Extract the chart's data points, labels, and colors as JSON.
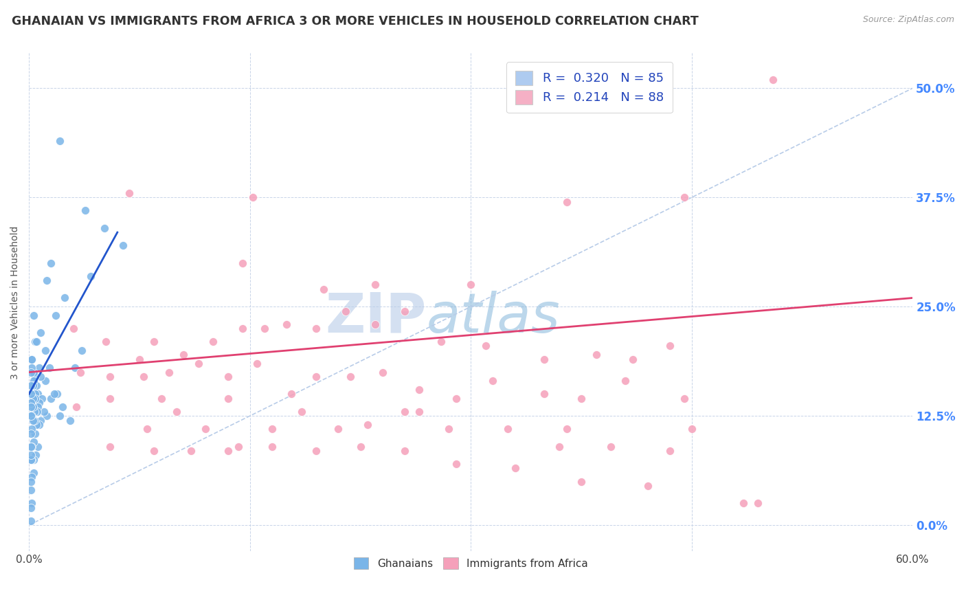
{
  "title": "GHANAIAN VS IMMIGRANTS FROM AFRICA 3 OR MORE VEHICLES IN HOUSEHOLD CORRELATION CHART",
  "source": "Source: ZipAtlas.com",
  "ylabel": "3 or more Vehicles in Household",
  "ytick_values": [
    0.0,
    12.5,
    25.0,
    37.5,
    50.0
  ],
  "xlim": [
    0.0,
    60.0
  ],
  "ylim": [
    -3.0,
    54.0
  ],
  "legend_entries": [
    {
      "label": "R =  0.320   N = 85",
      "color": "#aecbf0"
    },
    {
      "label": "R =  0.214   N = 88",
      "color": "#f5b0c5"
    }
  ],
  "blue_scatter_color": "#7ab5e8",
  "pink_scatter_color": "#f5a0ba",
  "blue_line_color": "#2255cc",
  "pink_line_color": "#e04070",
  "diagonal_color": "#b8cce8",
  "watermark_left": "ZIP",
  "watermark_right": "atlas",
  "background_color": "#ffffff",
  "title_color": "#333333",
  "title_fontsize": 12.5,
  "legend_fontsize": 13,
  "axis_label_fontsize": 10,
  "tick_label_color_y": "#4488ff",
  "grid_color": "#c8d4e8",
  "blue_points_x": [
    1.5,
    2.1,
    3.8,
    4.2,
    5.1,
    6.4,
    0.8,
    1.2,
    1.8,
    2.4,
    3.1,
    3.6,
    0.4,
    0.7,
    1.1,
    1.5,
    1.9,
    2.3,
    2.8,
    0.3,
    0.5,
    0.8,
    1.1,
    1.4,
    1.7,
    2.1,
    0.2,
    0.4,
    0.6,
    0.9,
    1.2,
    0.2,
    0.3,
    0.5,
    0.7,
    1.0,
    0.2,
    0.3,
    0.4,
    0.6,
    0.8,
    0.15,
    0.25,
    0.4,
    0.55,
    0.7,
    0.15,
    0.25,
    0.35,
    0.5,
    0.15,
    0.25,
    0.35,
    0.15,
    0.2,
    0.15,
    0.25,
    0.4,
    0.6,
    0.15,
    0.2,
    0.3,
    0.45,
    0.15,
    0.2,
    0.3,
    0.15,
    0.2,
    0.3,
    0.15,
    0.2,
    0.15,
    0.15,
    0.2,
    0.15,
    0.15,
    0.15
  ],
  "blue_points_y": [
    30.0,
    44.0,
    36.0,
    28.5,
    34.0,
    32.0,
    22.0,
    28.0,
    24.0,
    26.0,
    18.0,
    20.0,
    21.0,
    18.0,
    16.5,
    14.5,
    15.0,
    13.5,
    12.0,
    24.0,
    21.0,
    17.0,
    20.0,
    18.0,
    15.0,
    12.5,
    19.0,
    17.0,
    15.0,
    14.5,
    12.5,
    19.0,
    17.5,
    16.0,
    14.0,
    13.0,
    18.0,
    16.5,
    15.0,
    13.5,
    12.0,
    17.5,
    16.0,
    14.5,
    13.0,
    11.5,
    16.0,
    14.5,
    13.0,
    11.5,
    15.0,
    13.5,
    12.0,
    14.0,
    12.5,
    13.5,
    12.0,
    10.5,
    9.0,
    12.5,
    11.0,
    9.5,
    8.0,
    10.5,
    9.0,
    7.5,
    9.0,
    7.5,
    6.0,
    7.5,
    5.5,
    5.0,
    4.0,
    2.5,
    2.0,
    0.5,
    8.0
  ],
  "pink_points_x": [
    6.8,
    14.5,
    15.2,
    20.0,
    23.5,
    30.0,
    36.5,
    50.5,
    3.0,
    5.2,
    7.5,
    8.5,
    10.5,
    12.5,
    14.5,
    16.0,
    17.5,
    19.5,
    21.5,
    23.5,
    25.5,
    28.0,
    31.0,
    35.0,
    38.5,
    41.0,
    43.5,
    3.5,
    5.5,
    7.8,
    9.5,
    11.5,
    13.5,
    15.5,
    17.8,
    19.5,
    21.8,
    24.0,
    26.5,
    29.0,
    31.5,
    35.0,
    37.5,
    40.5,
    44.5,
    3.2,
    5.5,
    8.0,
    10.0,
    12.0,
    14.2,
    16.5,
    18.5,
    21.0,
    23.0,
    25.5,
    28.5,
    32.5,
    36.0,
    39.5,
    43.5,
    5.5,
    8.5,
    11.0,
    13.5,
    16.5,
    19.5,
    22.5,
    25.5,
    29.0,
    33.0,
    37.5,
    42.0,
    48.5,
    9.0,
    13.5,
    26.5,
    36.5,
    45.0,
    49.5,
    44.5
  ],
  "pink_points_y": [
    38.0,
    30.0,
    37.5,
    27.0,
    27.5,
    27.5,
    37.0,
    51.0,
    22.5,
    21.0,
    19.0,
    21.0,
    19.5,
    21.0,
    22.5,
    22.5,
    23.0,
    22.5,
    24.5,
    23.0,
    24.5,
    21.0,
    20.5,
    19.0,
    19.5,
    19.0,
    20.5,
    17.5,
    17.0,
    17.0,
    17.5,
    18.5,
    17.0,
    18.5,
    15.0,
    17.0,
    17.0,
    17.5,
    15.5,
    14.5,
    16.5,
    15.0,
    14.5,
    16.5,
    14.5,
    13.5,
    14.5,
    11.0,
    13.0,
    11.0,
    9.0,
    11.0,
    13.0,
    11.0,
    11.5,
    13.0,
    11.0,
    11.0,
    9.0,
    9.0,
    8.5,
    9.0,
    8.5,
    8.5,
    8.5,
    9.0,
    8.5,
    9.0,
    8.5,
    7.0,
    6.5,
    5.0,
    4.5,
    2.5,
    14.5,
    14.5,
    13.0,
    11.0,
    11.0,
    2.5,
    37.5
  ]
}
